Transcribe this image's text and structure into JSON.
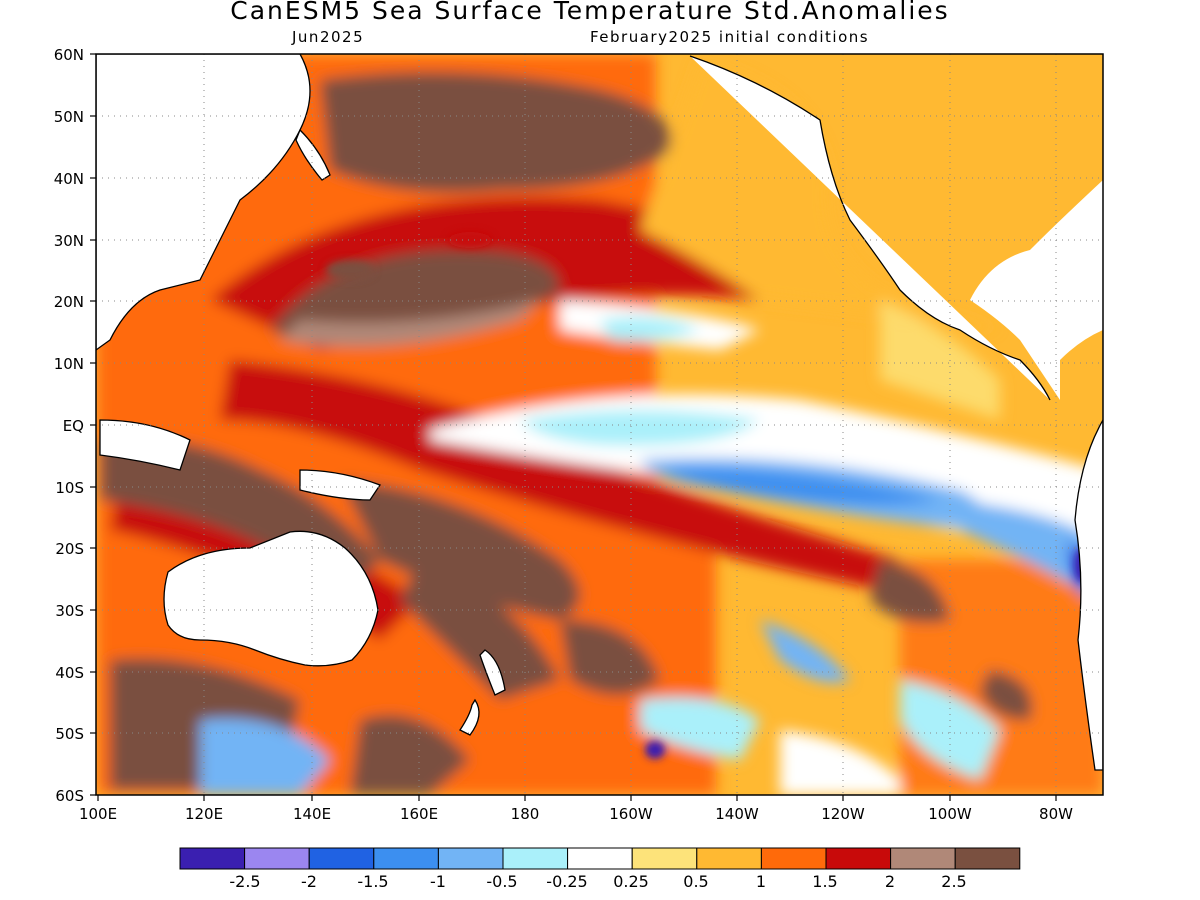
{
  "title": "CanESM5 Sea Surface Temperature Std.Anomalies",
  "subtitle_left": "Jun2025",
  "subtitle_right": "February2025 initial conditions",
  "map": {
    "lat_labels": [
      "60N",
      "50N",
      "40N",
      "30N",
      "20N",
      "10N",
      "EQ",
      "10S",
      "20S",
      "30S",
      "40S",
      "50S",
      "60S"
    ],
    "lon_labels": [
      "100E",
      "120E",
      "140E",
      "160E",
      "180",
      "160W",
      "140W",
      "120W",
      "100W",
      "80W"
    ],
    "lon_range": [
      "100E",
      "70W"
    ],
    "lat_range": [
      "60S",
      "60N"
    ],
    "grid": "dotted"
  },
  "colorbar": {
    "labels": [
      "-2.5",
      "-2",
      "-1.5",
      "-1",
      "-0.5",
      "-0.25",
      "0.25",
      "0.5",
      "1",
      "1.5",
      "2",
      "2.5"
    ],
    "colors": [
      "#3a1fb0",
      "#9b86f0",
      "#2062e3",
      "#3c8ff0",
      "#72b4f5",
      "#aaf0fa",
      "#ffffff",
      "#fde37a",
      "#ffb932",
      "#ff6a0a",
      "#c80a0a",
      "#b08878",
      "#7a5040"
    ]
  }
}
